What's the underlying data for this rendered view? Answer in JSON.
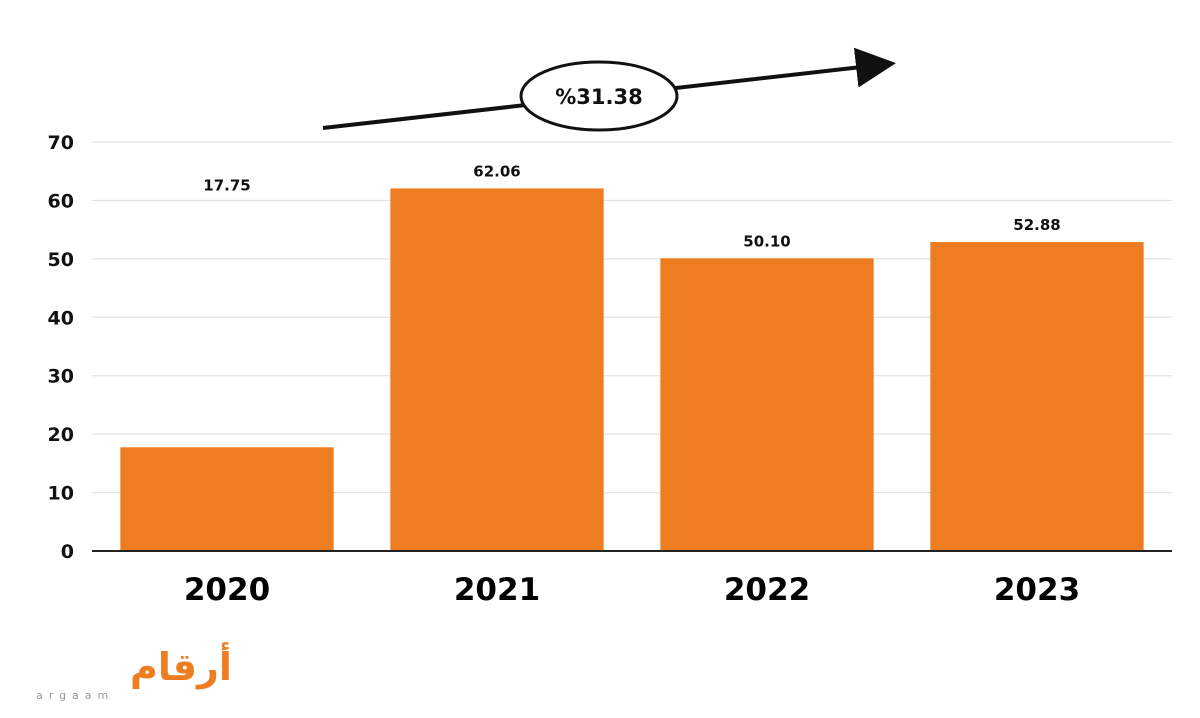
{
  "chart_data": {
    "type": "bar",
    "categories": [
      "2020",
      "2021",
      "2022",
      "2023"
    ],
    "values": [
      17.75,
      62.06,
      50.1,
      52.88
    ],
    "data_labels": [
      "17.75",
      "62.06",
      "50.10",
      "52.88"
    ],
    "ylim": [
      0,
      70
    ],
    "yticks": [
      0,
      10,
      20,
      30,
      40,
      50,
      60,
      70
    ],
    "grid": true,
    "bar_color": "#ee7d22",
    "title": "",
    "xlabel": "",
    "ylabel": ""
  },
  "annotation": {
    "text": "%31.38",
    "arrow": "up-right"
  },
  "logo": {
    "arabic": "أرقام",
    "latin": "argaam",
    "color": "#ee7d22"
  }
}
